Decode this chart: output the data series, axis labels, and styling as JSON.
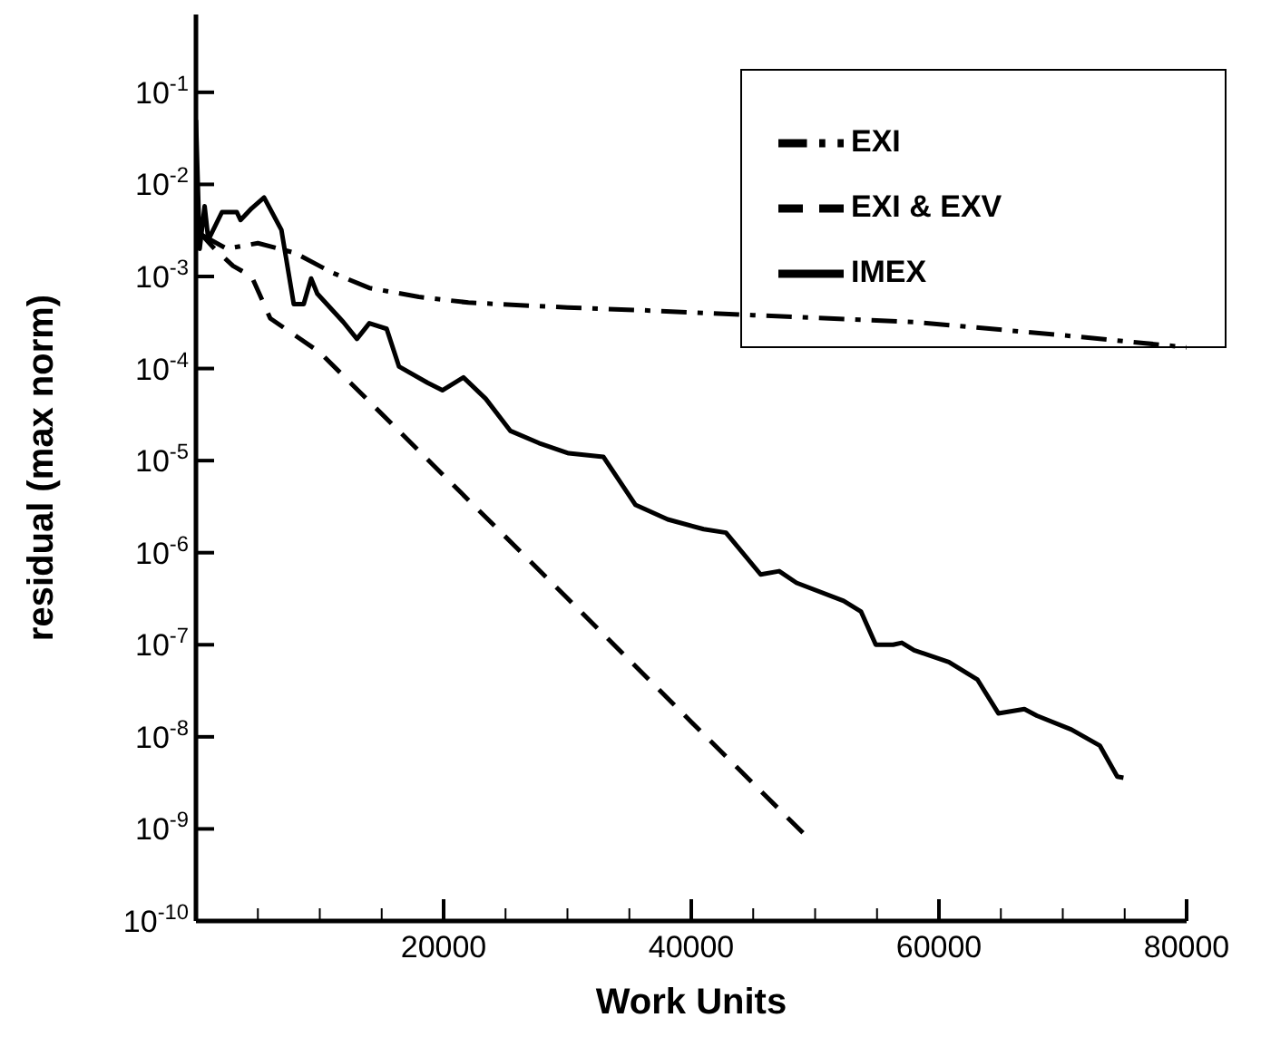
{
  "chart_data": {
    "type": "line",
    "xlabel": "Work Units",
    "ylabel": "residual (max norm)",
    "log": "y",
    "xlim": [
      0,
      80000
    ],
    "xticks": [
      {
        "value": 5000,
        "label": null
      },
      {
        "value": 10000,
        "label": null
      },
      {
        "value": 15000,
        "label": null
      },
      20000,
      {
        "value": 25000,
        "label": null
      },
      {
        "value": 30000,
        "label": null
      },
      {
        "value": 35000,
        "label": null
      },
      40000,
      {
        "value": 45000,
        "label": null
      },
      {
        "value": 50000,
        "label": null
      },
      {
        "value": 55000,
        "label": null
      },
      60000,
      {
        "value": 65000,
        "label": null
      },
      {
        "value": 70000,
        "label": null
      },
      {
        "value": 75000,
        "label": null
      },
      80000
    ],
    "ylim": [
      1e-10,
      0.7
    ],
    "yticks": [
      {
        "value": 1e-10,
        "label": "10$^{-10}$"
      },
      {
        "value": 1e-09,
        "label": "10$^{-9}$"
      },
      {
        "value": 1e-08,
        "label": "10$^{-8}$"
      },
      {
        "value": 1e-07,
        "label": "10$^{-7}$"
      },
      {
        "value": 1e-06,
        "label": "10$^{-6}$"
      },
      {
        "value": 1e-05,
        "label": "10$^{-5}$"
      },
      {
        "value": 0.0001,
        "label": "10$^{-4}$"
      },
      {
        "value": 0.001,
        "label": "10$^{-3}$"
      },
      {
        "value": 0.01,
        "label": "10$^{-2}$"
      },
      {
        "value": 0.1,
        "label": "10$^{-1}$"
      }
    ],
    "legend": "top right",
    "marker": "none",
    "series": [
      {
        "name": "EXI",
        "color": "#000000",
        "line_style": "dashdot",
        "x": [
          500,
          2500,
          5000,
          8000,
          11000,
          14000,
          18000,
          22000,
          30000,
          36000,
          45000,
          58000,
          70000,
          80000
        ],
        "values": [
          0.0028,
          0.002,
          0.0023,
          0.0018,
          0.0011,
          0.00075,
          0.0006,
          0.00052,
          0.00046,
          0.00043,
          0.00038,
          0.00032,
          0.00023,
          0.00017
        ]
      },
      {
        "name": "EXI & EXV",
        "color": "#000000",
        "line_style": "dashed",
        "x": [
          300,
          1500,
          3000,
          4500,
          6000,
          10000,
          20000,
          30000,
          40000,
          49500
        ],
        "values": [
          0.003,
          0.002,
          0.0013,
          0.001,
          0.00035,
          0.00015,
          6.9e-06,
          3.2e-07,
          1.45e-08,
          7.8e-10
        ]
      },
      {
        "name": "IMEX",
        "color": "#000000",
        "line_style": "solid",
        "x": [
          0,
          300,
          700,
          1000,
          2100,
          3300,
          3600,
          4500,
          5500,
          6900,
          7900,
          8700,
          9300,
          9800,
          11900,
          13000,
          14000,
          15400,
          16400,
          18700,
          19900,
          21600,
          23400,
          25400,
          27700,
          30100,
          32900,
          35500,
          38100,
          41000,
          42800,
          45600,
          47100,
          48500,
          52300,
          53700,
          54900,
          56300,
          57000,
          58000,
          60800,
          63100,
          64800,
          66900,
          67900,
          70700,
          73000,
          74400,
          74900
        ],
        "values": [
          0.05,
          0.002,
          0.0058,
          0.0025,
          0.005,
          0.005,
          0.0041,
          0.0055,
          0.0072,
          0.0032,
          0.0005,
          0.0005,
          0.00095,
          0.00065,
          0.00032,
          0.00021,
          0.00031,
          0.00027,
          0.000105,
          7e-05,
          5.8e-05,
          8e-05,
          4.7e-05,
          2.1e-05,
          1.55e-05,
          1.2e-05,
          1.1e-05,
          3.3e-06,
          2.3e-06,
          1.8e-06,
          1.65e-06,
          5.8e-07,
          6.3e-07,
          4.7e-07,
          3e-07,
          2.3e-07,
          1e-07,
          1e-07,
          1.05e-07,
          8.7e-08,
          6.5e-08,
          4.2e-08,
          1.8e-08,
          2e-08,
          1.7e-08,
          1.2e-08,
          8e-09,
          3.7e-09,
          3.6e-09
        ]
      }
    ]
  }
}
